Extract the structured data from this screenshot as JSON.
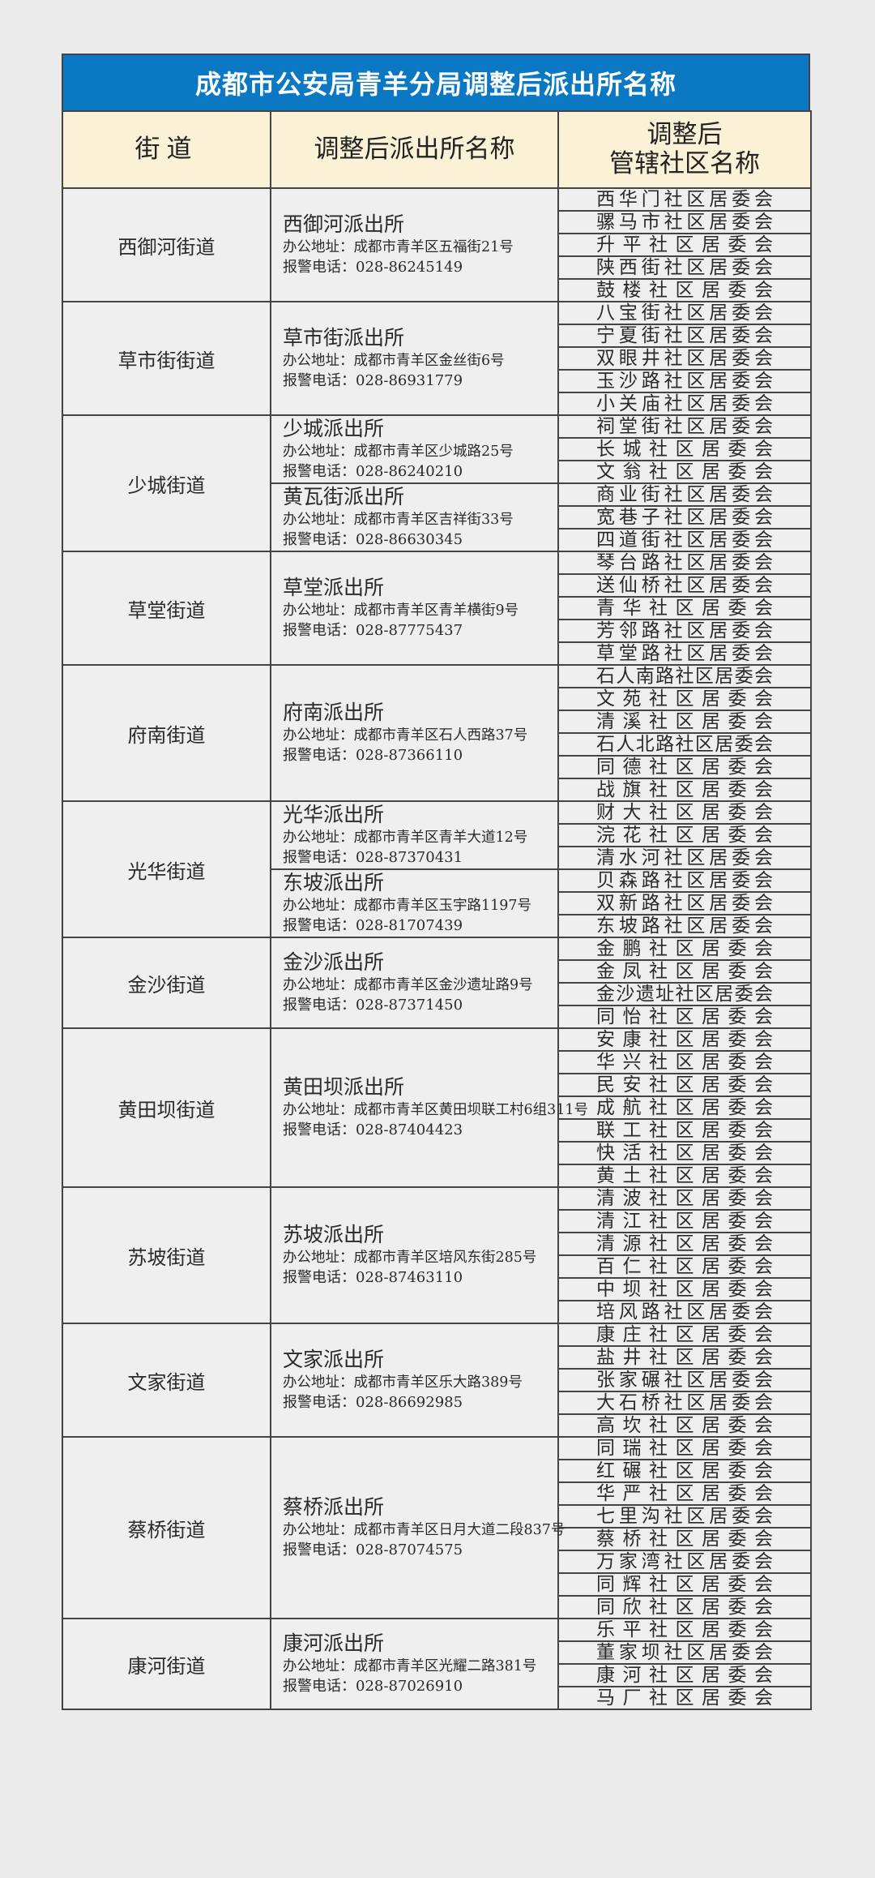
{
  "title": "成都市公安局青羊分局调整后派出所名称",
  "colors": {
    "title_bg": "#0b78c4",
    "header_bg": "#fbf1d6",
    "cell_bg": "#efefef"
  },
  "headers": {
    "street": "街道",
    "station": "调整后派出所名称",
    "community_line1": "调整后",
    "community_line2": "管辖社区名称"
  },
  "districts": [
    {
      "street": "西御河街道",
      "stations": [
        {
          "name": "西御河派出所",
          "address": "办公地址：成都市青羊区五福街21号",
          "phone": "报警电话：028-86245149",
          "communities": [
            "西华门社区居委会",
            "骡马市社区居委会",
            "升平社区居委会",
            "陕西街社区居委会",
            "鼓楼社区居委会"
          ]
        }
      ]
    },
    {
      "street": "草市街街道",
      "stations": [
        {
          "name": "草市街派出所",
          "address": "办公地址：成都市青羊区金丝街6号",
          "phone": "报警电话：028-86931779",
          "communities": [
            "八宝街社区居委会",
            "宁夏街社区居委会",
            "双眼井社区居委会",
            "玉沙路社区居委会",
            "小关庙社区居委会"
          ]
        }
      ]
    },
    {
      "street": "少城街道",
      "stations": [
        {
          "name": "少城派出所",
          "address": "办公地址：成都市青羊区少城路25号",
          "phone": "报警电话：028-86240210",
          "communities": [
            "祠堂街社区居委会",
            "长城社区居委会",
            "文翁社区居委会"
          ]
        },
        {
          "name": "黄瓦街派出所",
          "address": "办公地址：成都市青羊区吉祥街33号",
          "phone": "报警电话：028-86630345",
          "communities": [
            "商业街社区居委会",
            "宽巷子社区居委会",
            "四道街社区居委会"
          ]
        }
      ]
    },
    {
      "street": "草堂街道",
      "stations": [
        {
          "name": "草堂派出所",
          "address": "办公地址：成都市青羊区青羊横街9号",
          "phone": "报警电话：028-87775437",
          "communities": [
            "琴台路社区居委会",
            "送仙桥社区居委会",
            "青华社区居委会",
            "芳邻路社区居委会",
            "草堂路社区居委会"
          ]
        }
      ]
    },
    {
      "street": "府南街道",
      "stations": [
        {
          "name": "府南派出所",
          "address": "办公地址：成都市青羊区石人西路37号",
          "phone": "报警电话：028-87366110",
          "communities": [
            "石人南路社区居委会",
            "文苑社区居委会",
            "清溪社区居委会",
            "石人北路社区居委会",
            "同德社区居委会",
            "战旗社区居委会"
          ]
        }
      ]
    },
    {
      "street": "光华街道",
      "stations": [
        {
          "name": "光华派出所",
          "address": "办公地址：成都市青羊区青羊大道12号",
          "phone": "报警电话：028-87370431",
          "communities": [
            "财大社区居委会",
            "浣花社区居委会",
            "清水河社区居委会"
          ]
        },
        {
          "name": "东坡派出所",
          "address": "办公地址：成都市青羊区玉宇路1197号",
          "phone": "报警电话：028-81707439",
          "communities": [
            "贝森路社区居委会",
            "双新路社区居委会",
            "东坡路社区居委会"
          ]
        }
      ]
    },
    {
      "street": "金沙街道",
      "stations": [
        {
          "name": "金沙派出所",
          "address": "办公地址：成都市青羊区金沙遗址路9号",
          "phone": "报警电话：028-87371450",
          "communities": [
            "金鹏社区居委会",
            "金凤社区居委会",
            "金沙遗址社区居委会",
            "同怡社区居委会"
          ]
        }
      ]
    },
    {
      "street": "黄田坝街道",
      "stations": [
        {
          "name": "黄田坝派出所",
          "address": "办公地址：成都市青羊区黄田坝联工村6组311号",
          "phone": "报警电话：028-87404423",
          "communities": [
            "安康社区居委会",
            "华兴社区居委会",
            "民安社区居委会",
            "成航社区居委会",
            "联工社区居委会",
            "快活社区居委会",
            "黄土社区居委会"
          ]
        }
      ]
    },
    {
      "street": "苏坡街道",
      "stations": [
        {
          "name": "苏坡派出所",
          "address": "办公地址：成都市青羊区培风东街285号",
          "phone": "报警电话：028-87463110",
          "communities": [
            "清波社区居委会",
            "清江社区居委会",
            "清源社区居委会",
            "百仁社区居委会",
            "中坝社区居委会",
            "培风路社区居委会"
          ]
        }
      ]
    },
    {
      "street": "文家街道",
      "stations": [
        {
          "name": "文家派出所",
          "address": "办公地址：成都市青羊区乐大路389号",
          "phone": "报警电话：028-86692985",
          "communities": [
            "康庄社区居委会",
            "盐井社区居委会",
            "张家碾社区居委会",
            "大石桥社区居委会",
            "高坎社区居委会"
          ]
        }
      ]
    },
    {
      "street": "蔡桥街道",
      "stations": [
        {
          "name": "蔡桥派出所",
          "address": "办公地址：成都市青羊区日月大道二段837号",
          "phone": "报警电话：028-87074575",
          "communities": [
            "同瑞社区居委会",
            "红碾社区居委会",
            "华严社区居委会",
            "七里沟社区居委会",
            "蔡桥社区居委会",
            "万家湾社区居委会",
            "同辉社区居委会",
            "同欣社区居委会"
          ]
        }
      ]
    },
    {
      "street": "康河街道",
      "stations": [
        {
          "name": "康河派出所",
          "address": "办公地址：成都市青羊区光耀二路381号",
          "phone": "报警电话：028-87026910",
          "communities": [
            "乐平社区居委会",
            "董家坝社区居委会",
            "康河社区居委会",
            "马厂社区居委会"
          ]
        }
      ]
    }
  ]
}
